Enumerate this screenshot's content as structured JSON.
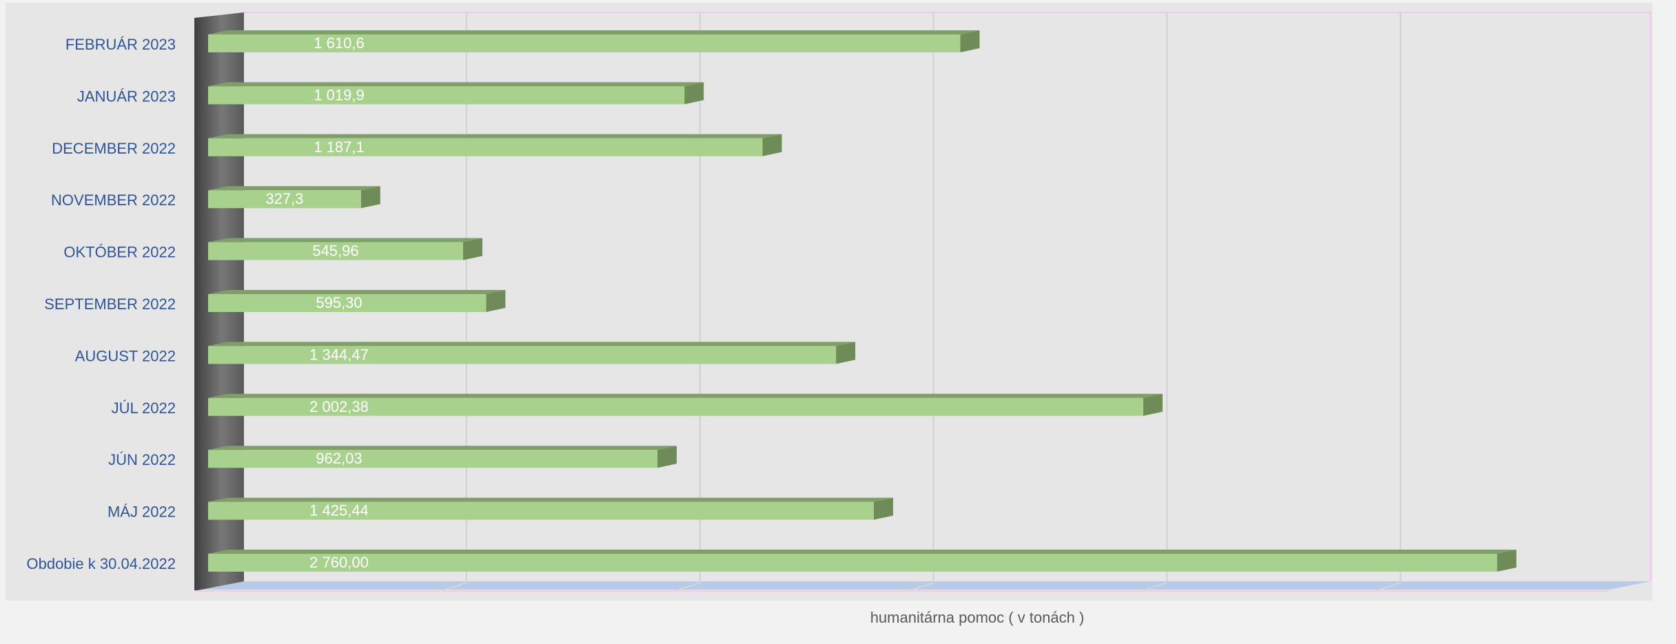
{
  "chart_data": {
    "type": "bar",
    "orientation": "horizontal",
    "style": "3d",
    "title": "",
    "xlabel": "humanitárna pomoc ( v tonách )",
    "ylabel": "",
    "categories": [
      "FEBRUÁR 2023",
      "JANUÁR 2023",
      "DECEMBER 2022",
      "NOVEMBER 2022",
      "OKTÓBER 2022",
      "SEPTEMBER 2022",
      "AUGUST 2022",
      "JÚL 2022",
      "JÚN 2022",
      "MÁJ 2022",
      "Obdobie k 30.04.2022"
    ],
    "values": [
      1610.6,
      1019.9,
      1187.1,
      327.3,
      545.96,
      595.3,
      1344.47,
      2002.38,
      962.03,
      1425.44,
      2760.0
    ],
    "data_labels": [
      "1 610,6",
      "1 019,9",
      "1 187,1",
      "327,3",
      "545,96",
      "595,30",
      "1 344,47",
      "2 002,38",
      "962,03",
      "1 425,44",
      "2 760,00"
    ],
    "xlim": [
      0,
      3000
    ],
    "grid_step": 500,
    "grid": true,
    "x_tick_labels_visible": false,
    "legend": "none",
    "colors": {
      "bar_front": "#a9d18e",
      "bar_top": "#7f9e68",
      "bar_side": "#6e8b58",
      "label_text": "#ffffff",
      "category_text": "#2f5597",
      "axis_title_text": "#595959",
      "plot_bg": "#e7e6e6",
      "page_bg": "#f2f2f2",
      "side_wall": "#595959",
      "floor": "#b4c7e7",
      "grid": "#d0d0d0",
      "plot_border": "#f4c6f0"
    }
  }
}
